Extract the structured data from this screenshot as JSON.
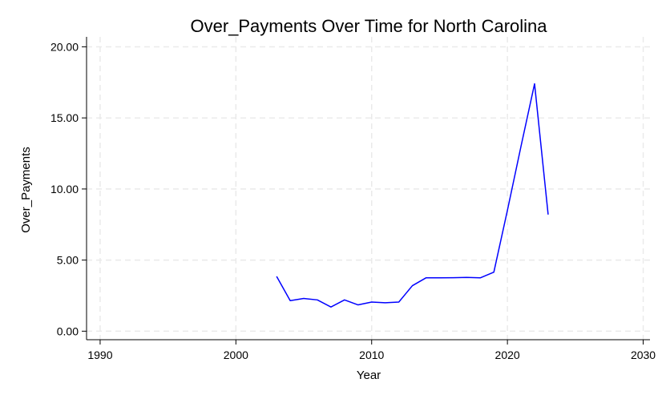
{
  "chart_data": {
    "type": "line",
    "title": "Over_Payments Over Time for North Carolina",
    "xlabel": "Year",
    "ylabel": "Over_Payments",
    "xlim": [
      1989,
      2030.5
    ],
    "ylim": [
      -0.6,
      20.7
    ],
    "grid": true,
    "x_ticks": [
      1990,
      2000,
      2010,
      2020,
      2030
    ],
    "y_ticks": [
      0,
      5,
      10,
      15,
      20
    ],
    "x_tick_labels": [
      "1990",
      "2000",
      "2010",
      "2020",
      "2030"
    ],
    "y_tick_labels": [
      "0.00",
      "5.00",
      "10.00",
      "15.00",
      "20.00"
    ],
    "series": [
      {
        "color": "#0000ff",
        "x": [
          2003,
          2004,
          2005,
          2006,
          2007,
          2008,
          2009,
          2010,
          2011,
          2012,
          2013,
          2014,
          2015,
          2016,
          2017,
          2018,
          2019,
          2020,
          2021,
          2022,
          2023
        ],
        "y": [
          3.85,
          2.15,
          2.3,
          2.2,
          1.7,
          2.2,
          1.85,
          2.05,
          2.0,
          2.05,
          3.2,
          3.75,
          3.75,
          3.76,
          3.78,
          3.75,
          4.15,
          8.5,
          13.0,
          17.4,
          8.2
        ]
      }
    ]
  }
}
